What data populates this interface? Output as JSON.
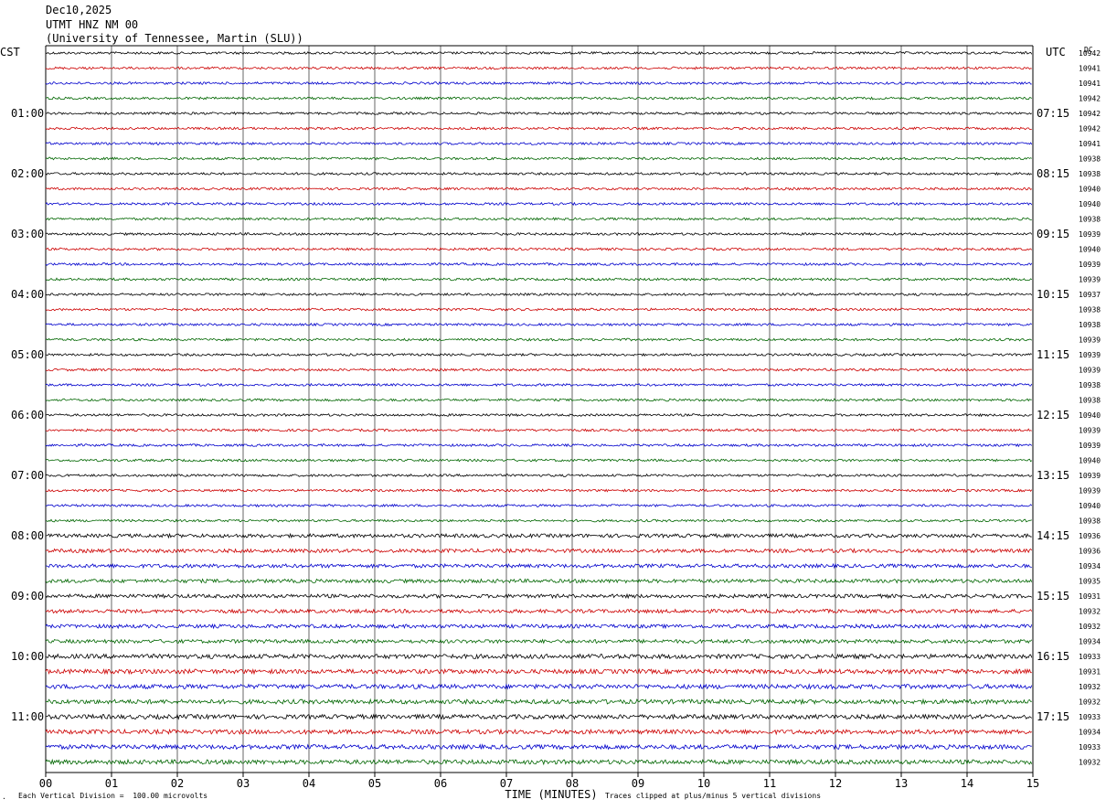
{
  "header": {
    "date": "Dec10,2025",
    "station": "UTMT HNZ NM 00",
    "network": "(University of Tennessee, Martin (SLU))"
  },
  "left_timezone": "CST",
  "right_timezone": "UTC",
  "dc_label": "DC",
  "footer": {
    "scale_note": "Each Vertical Division =  100.00 microvolts",
    "clip_note": "Traces clipped at plus/minus 5 vertical divisions",
    "corner_mark": "."
  },
  "chart_data": {
    "type": "line",
    "xlabel": "TIME (MINUTES)",
    "x_ticks": [
      "00",
      "01",
      "02",
      "03",
      "04",
      "05",
      "06",
      "07",
      "08",
      "09",
      "10",
      "11",
      "12",
      "13",
      "14",
      "15"
    ],
    "xlim": [
      0,
      15
    ],
    "trace_colors": [
      "#000000",
      "#cc0000",
      "#0000cc",
      "#006600"
    ],
    "left_hour_labels": [
      "01:00",
      "02:00",
      "03:00",
      "04:00",
      "05:00",
      "06:00",
      "07:00",
      "08:00",
      "09:00",
      "10:00",
      "11:00"
    ],
    "right_hour_labels": [
      "07:15",
      "08:15",
      "09:15",
      "10:15",
      "11:15",
      "12:15",
      "13:15",
      "14:15",
      "15:15",
      "16:15",
      "17:15"
    ],
    "dc_values": [
      "10942",
      "10941",
      "10941",
      "10942",
      "10942",
      "10942",
      "10941",
      "10938",
      "10938",
      "10940",
      "10940",
      "10938",
      "10939",
      "10940",
      "10939",
      "10939",
      "10937",
      "10938",
      "10938",
      "10939",
      "10939",
      "10939",
      "10938",
      "10938",
      "10940",
      "10939",
      "10939",
      "10940",
      "10939",
      "10939",
      "10940",
      "10938",
      "10936",
      "10936",
      "10934",
      "10935",
      "10931",
      "10932",
      "10932",
      "10934",
      "10933",
      "10931",
      "10932",
      "10932",
      "10933",
      "10934",
      "10933",
      "10932"
    ]
  }
}
